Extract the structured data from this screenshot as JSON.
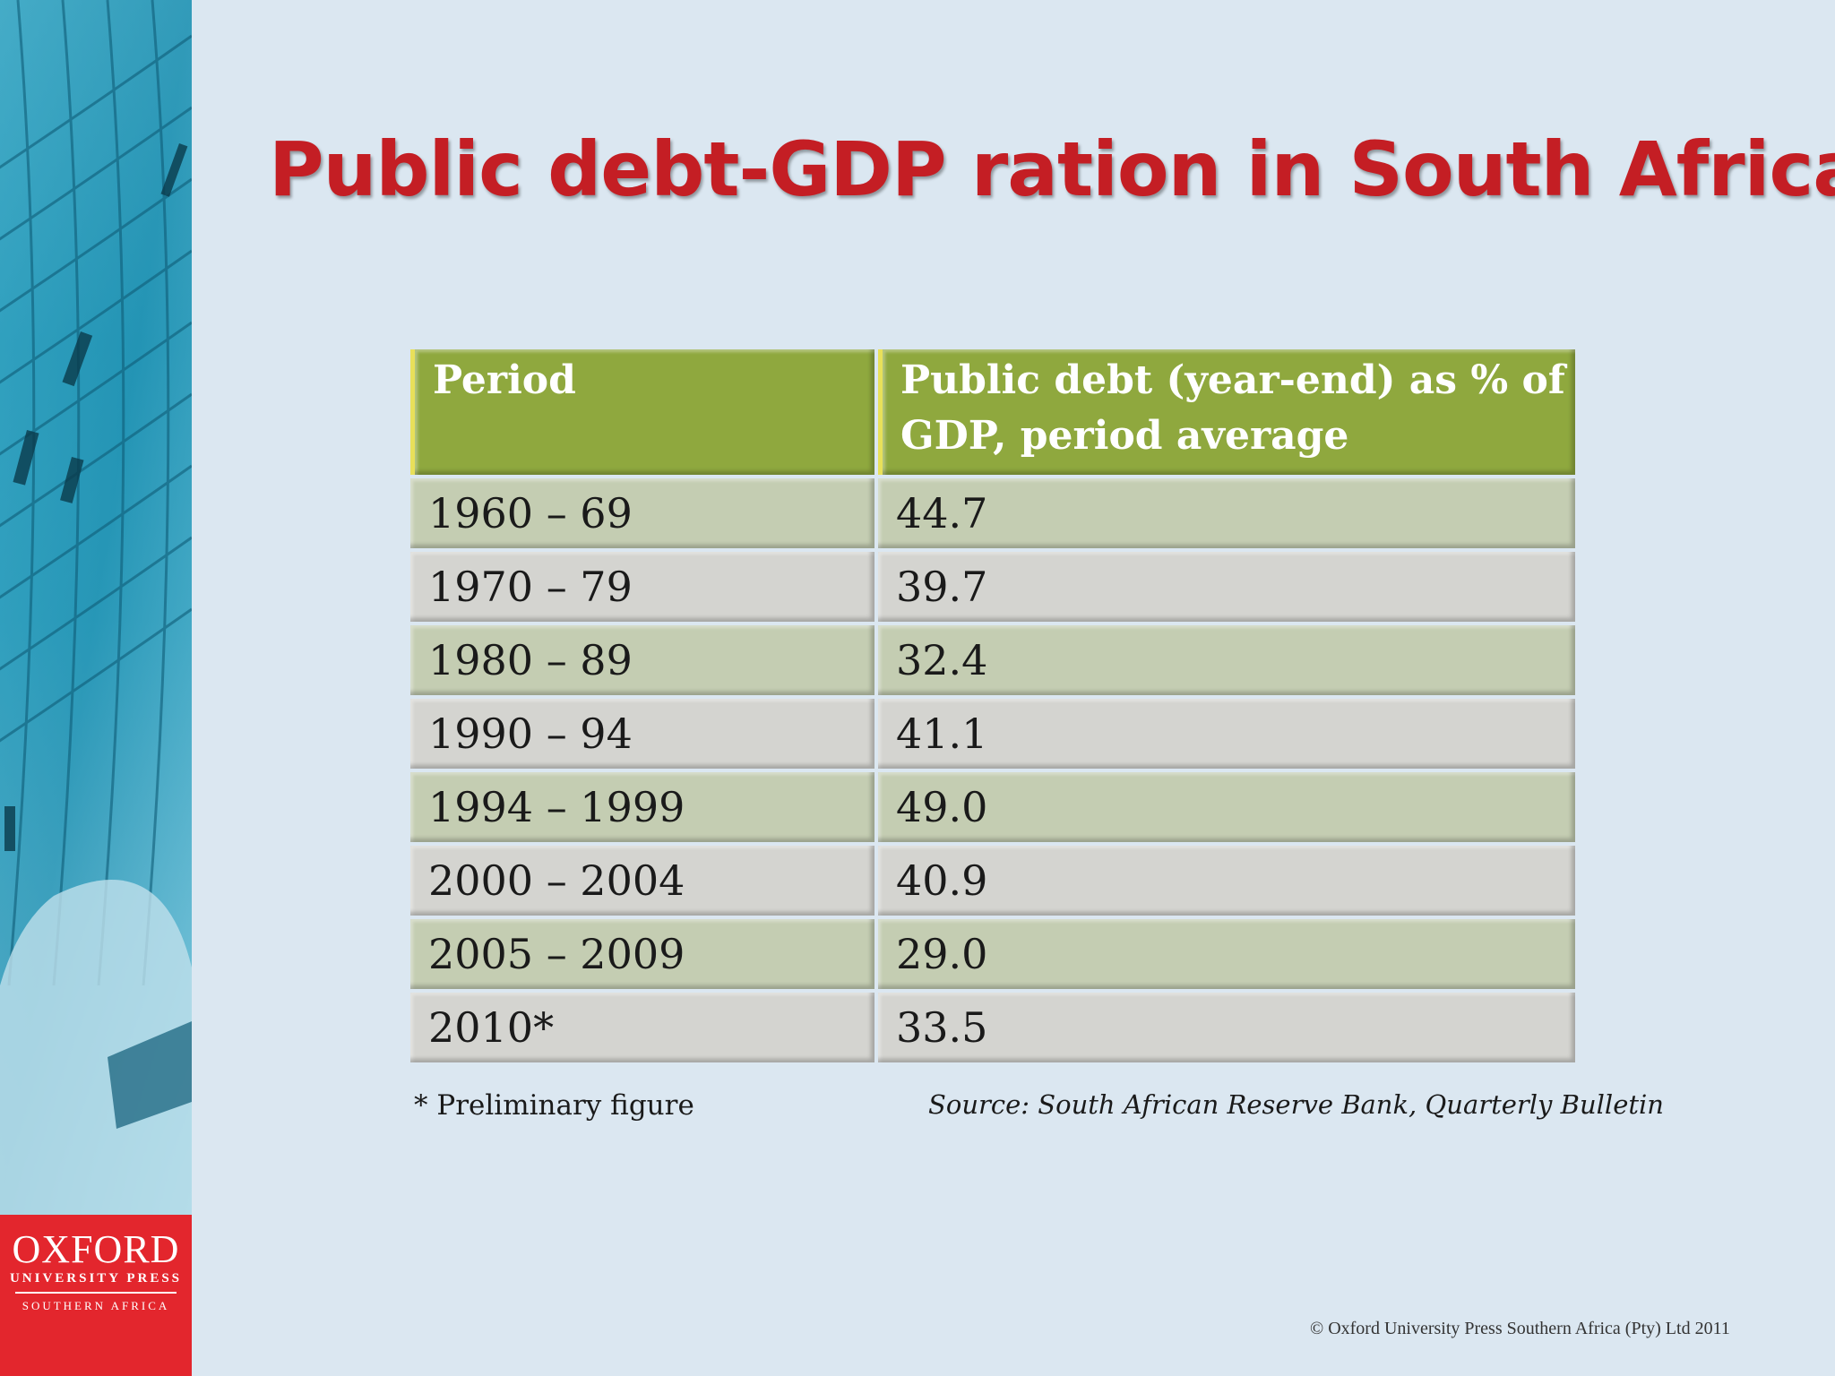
{
  "title": "Public debt-GDP ration in South Africa",
  "table": {
    "headers": [
      "Period",
      "Public debt (year-end) as % of GDP, period average"
    ],
    "rows": [
      [
        "1960 – 69",
        "44.7"
      ],
      [
        "1970 – 79",
        "39.7"
      ],
      [
        "1980 – 89",
        "32.4"
      ],
      [
        "1990 – 94",
        "41.1"
      ],
      [
        "1994 – 1999",
        "49.0"
      ],
      [
        "2000 – 2004",
        "40.9"
      ],
      [
        "2005 – 2009",
        "29.0"
      ],
      [
        "2010*",
        "33.5"
      ]
    ]
  },
  "footnote": "* Preliminary figure",
  "source": "Source: South African Reserve Bank, Quarterly Bulletin",
  "logo": {
    "name": "OXFORD",
    "line1": "UNIVERSITY PRESS",
    "line2": "SOUTHERN AFRICA"
  },
  "copyright": "© Oxford University Press Southern Africa (Pty) Ltd 2011",
  "colors": {
    "title": "#c41e24",
    "header_bg": "#8fa83e",
    "row_odd": "#c4cdb2",
    "row_even": "#d4d4d0",
    "logo_bg": "#e3262d"
  }
}
